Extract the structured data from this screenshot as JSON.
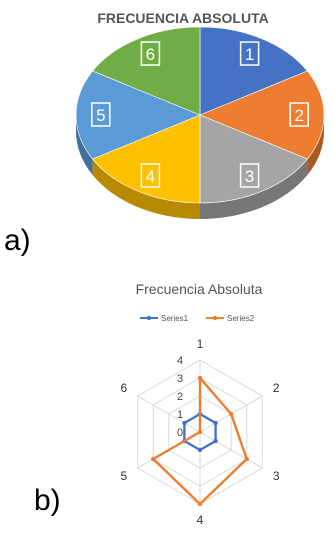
{
  "chart_data": [
    {
      "type": "pie",
      "title": "FRECUENCIA ABSOLUTA",
      "categories": [
        "1",
        "2",
        "3",
        "4",
        "5",
        "6"
      ],
      "values": [
        1,
        1,
        1,
        1,
        1,
        1
      ],
      "colors": [
        "#4472C4",
        "#ED7D31",
        "#A5A5A5",
        "#FFC000",
        "#5B9BD5",
        "#70AD47"
      ],
      "style": "3d",
      "panel_label": "a)"
    },
    {
      "type": "radar",
      "title": "Frecuencia Absoluta",
      "categories": [
        "1",
        "2",
        "3",
        "4",
        "5",
        "6"
      ],
      "series": [
        {
          "name": "Series1",
          "values": [
            1,
            1,
            1,
            1,
            1,
            1
          ],
          "color": "#4472C4"
        },
        {
          "name": "Series2",
          "values": [
            3,
            2,
            3,
            4,
            3,
            0
          ],
          "color": "#ED7D31"
        }
      ],
      "ticks": [
        "0",
        "1",
        "2",
        "3",
        "4"
      ],
      "ylim": [
        0,
        4
      ],
      "legend": "top",
      "panel_label": "b)"
    }
  ]
}
